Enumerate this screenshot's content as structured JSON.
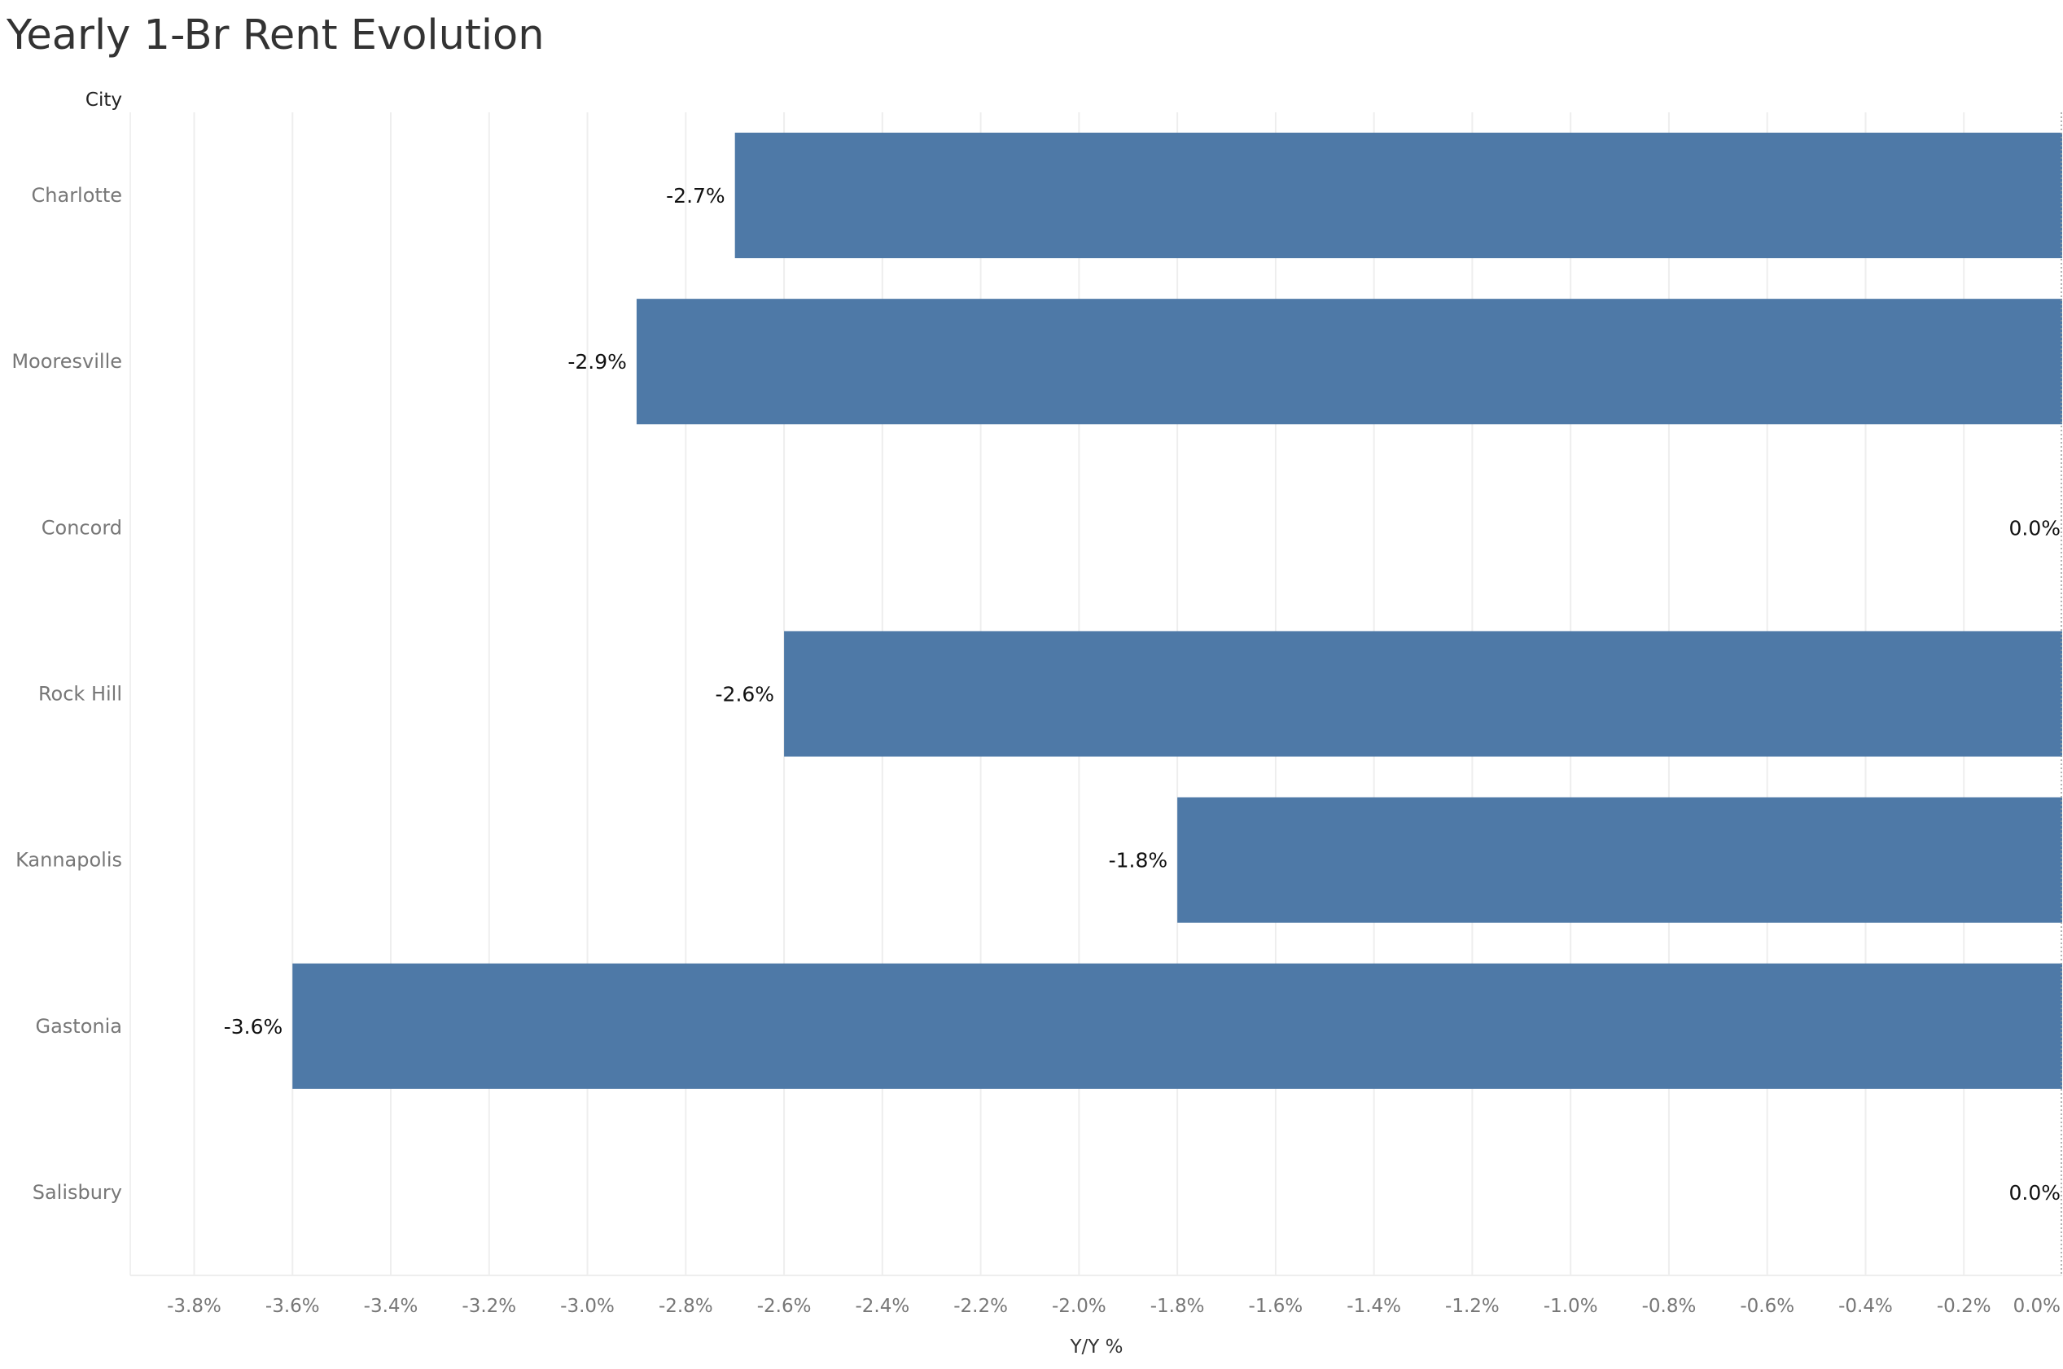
{
  "chart_data": {
    "type": "bar",
    "orientation": "horizontal",
    "title": "Yearly 1-Br Rent Evolution",
    "row_header": "City",
    "xlabel": "Y/Y %",
    "categories": [
      "Charlotte",
      "Mooresville",
      "Concord",
      "Rock Hill",
      "Kannapolis",
      "Gastonia",
      "Salisbury"
    ],
    "values": [
      -2.7,
      -2.9,
      0.0,
      -2.6,
      -1.8,
      -3.6,
      0.0
    ],
    "data_labels": [
      "-2.7%",
      "-2.9%",
      "0.0%",
      "-2.6%",
      "-1.8%",
      "-3.6%",
      "0.0%"
    ],
    "xlim": [
      -3.93,
      0.0
    ],
    "x_ticks": [
      -3.8,
      -3.6,
      -3.4,
      -3.2,
      -3.0,
      -2.8,
      -2.6,
      -2.4,
      -2.2,
      -2.0,
      -1.8,
      -1.6,
      -1.4,
      -1.2,
      -1.0,
      -0.8,
      -0.6,
      -0.4,
      -0.2,
      0.0
    ],
    "x_tick_labels": [
      "-3.8%",
      "-3.6%",
      "-3.4%",
      "-3.2%",
      "-3.0%",
      "-2.8%",
      "-2.6%",
      "-2.4%",
      "-2.2%",
      "-2.0%",
      "-1.8%",
      "-1.6%",
      "-1.4%",
      "-1.2%",
      "-1.0%",
      "-0.8%",
      "-0.6%",
      "-0.4%",
      "-0.2%",
      "0.0%"
    ],
    "grid": true,
    "bar_color": "#4e79a7",
    "grid_color": "#eeeeee",
    "zero_line_color": "#999999"
  }
}
